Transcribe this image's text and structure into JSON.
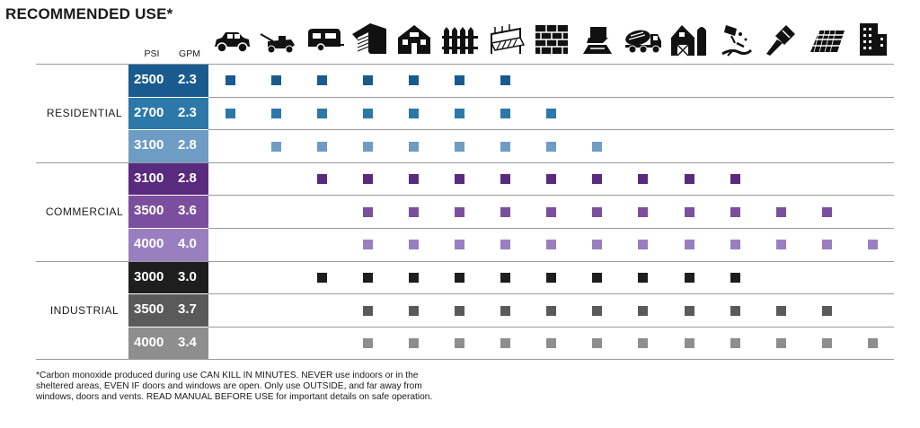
{
  "title": "RECOMMENDED USE*",
  "headers": {
    "psi": "PSI",
    "gpm": "GPM"
  },
  "icons": [
    "car-icon",
    "lawn-mower-icon",
    "camper-trailer-icon",
    "garage-icon",
    "house-icon",
    "fence-icon",
    "deck-icon",
    "brick-wall-icon",
    "driveway-icon",
    "cement-mixer-truck-icon",
    "barn-silo-icon",
    "paint-stripping-icon",
    "paint-brush-icon",
    "roof-shingles-icon",
    "office-building-icon"
  ],
  "categories": [
    {
      "label": "RESIDENTIAL",
      "rows": [
        {
          "psi": "2500",
          "gpm": "2.3",
          "color": "#1a5b8f",
          "dot": "#1a5b8f",
          "uses": [
            1,
            1,
            1,
            1,
            1,
            1,
            1,
            0,
            0,
            0,
            0,
            0,
            0,
            0,
            0
          ]
        },
        {
          "psi": "2700",
          "gpm": "2.3",
          "color": "#2c78a8",
          "dot": "#2c78a8",
          "uses": [
            1,
            1,
            1,
            1,
            1,
            1,
            1,
            1,
            0,
            0,
            0,
            0,
            0,
            0,
            0
          ]
        },
        {
          "psi": "3100",
          "gpm": "2.8",
          "color": "#6e9cc5",
          "dot": "#6e9cc5",
          "uses": [
            0,
            1,
            1,
            1,
            1,
            1,
            1,
            1,
            1,
            0,
            0,
            0,
            0,
            0,
            0
          ]
        }
      ]
    },
    {
      "label": "COMMERCIAL",
      "rows": [
        {
          "psi": "3100",
          "gpm": "2.8",
          "color": "#5a2a7e",
          "dot": "#5a2a7e",
          "uses": [
            0,
            0,
            1,
            1,
            1,
            1,
            1,
            1,
            1,
            1,
            1,
            1,
            0,
            0,
            0
          ]
        },
        {
          "psi": "3500",
          "gpm": "3.6",
          "color": "#7b4f9d",
          "dot": "#7b4f9d",
          "uses": [
            0,
            0,
            0,
            1,
            1,
            1,
            1,
            1,
            1,
            1,
            1,
            1,
            1,
            1,
            0
          ]
        },
        {
          "psi": "4000",
          "gpm": "4.0",
          "color": "#9a7fc0",
          "dot": "#9a7fc0",
          "uses": [
            0,
            0,
            0,
            1,
            1,
            1,
            1,
            1,
            1,
            1,
            1,
            1,
            1,
            1,
            1
          ]
        }
      ]
    },
    {
      "label": "INDUSTRIAL",
      "rows": [
        {
          "psi": "3000",
          "gpm": "3.0",
          "color": "#1e1e1e",
          "dot": "#1e1e1e",
          "uses": [
            0,
            0,
            1,
            1,
            1,
            1,
            1,
            1,
            1,
            1,
            1,
            1,
            0,
            0,
            0
          ]
        },
        {
          "psi": "3500",
          "gpm": "3.7",
          "color": "#5a5a5a",
          "dot": "#5a5a5a",
          "uses": [
            0,
            0,
            0,
            1,
            1,
            1,
            1,
            1,
            1,
            1,
            1,
            1,
            1,
            1,
            0
          ]
        },
        {
          "psi": "4000",
          "gpm": "3.4",
          "color": "#8e8e8e",
          "dot": "#8e8e8e",
          "uses": [
            0,
            0,
            0,
            1,
            1,
            1,
            1,
            1,
            1,
            1,
            1,
            1,
            1,
            1,
            1
          ]
        }
      ]
    }
  ],
  "footnote": "*Carbon monoxide produced during use CAN KILL IN MINUTES. NEVER use indoors or in the sheltered areas, EVEN IF doors and windows are open. Only use OUTSIDE, and far away from windows, doors and vents. READ MANUAL BEFORE USE for important details on safe operation."
}
